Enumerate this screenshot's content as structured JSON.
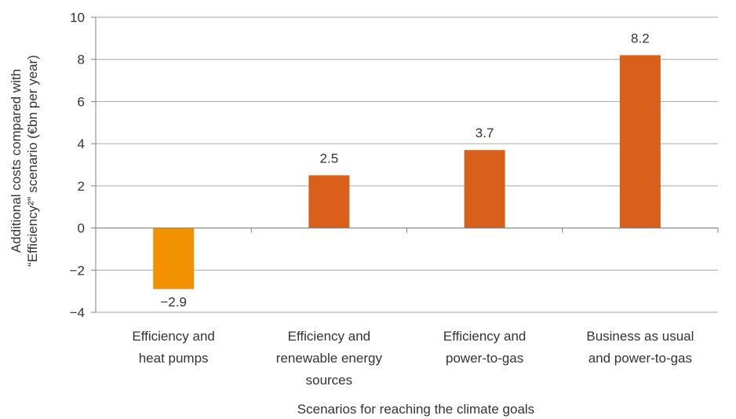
{
  "chart_data": {
    "type": "bar",
    "categories": [
      [
        "Efficiency and",
        "heat pumps"
      ],
      [
        "Efficiency and",
        "renewable energy",
        "sources"
      ],
      [
        "Efficiency and",
        "power-to-gas"
      ],
      [
        "Business as usual",
        "and power-to-gas"
      ]
    ],
    "values": [
      -2.9,
      2.5,
      3.7,
      8.2
    ],
    "value_labels": [
      "−2.9",
      "2.5",
      "3.7",
      "8.2"
    ],
    "bar_colors": [
      "#f39200",
      "#d9601a",
      "#d9601a",
      "#d9601a"
    ],
    "xlabel": "Scenarios for reaching the climate goals",
    "ylabel_lines": [
      "Additional costs compared with",
      "“Efficiency²” scenario (€bn per year)"
    ],
    "ylim": [
      -4,
      10
    ],
    "yticks": [
      10,
      8,
      6,
      4,
      2,
      0,
      -2,
      -4
    ],
    "ytick_labels": [
      "10",
      "8",
      "6",
      "4",
      "2",
      "0",
      "−2",
      "−4"
    ],
    "grid": true,
    "legend": "none"
  }
}
